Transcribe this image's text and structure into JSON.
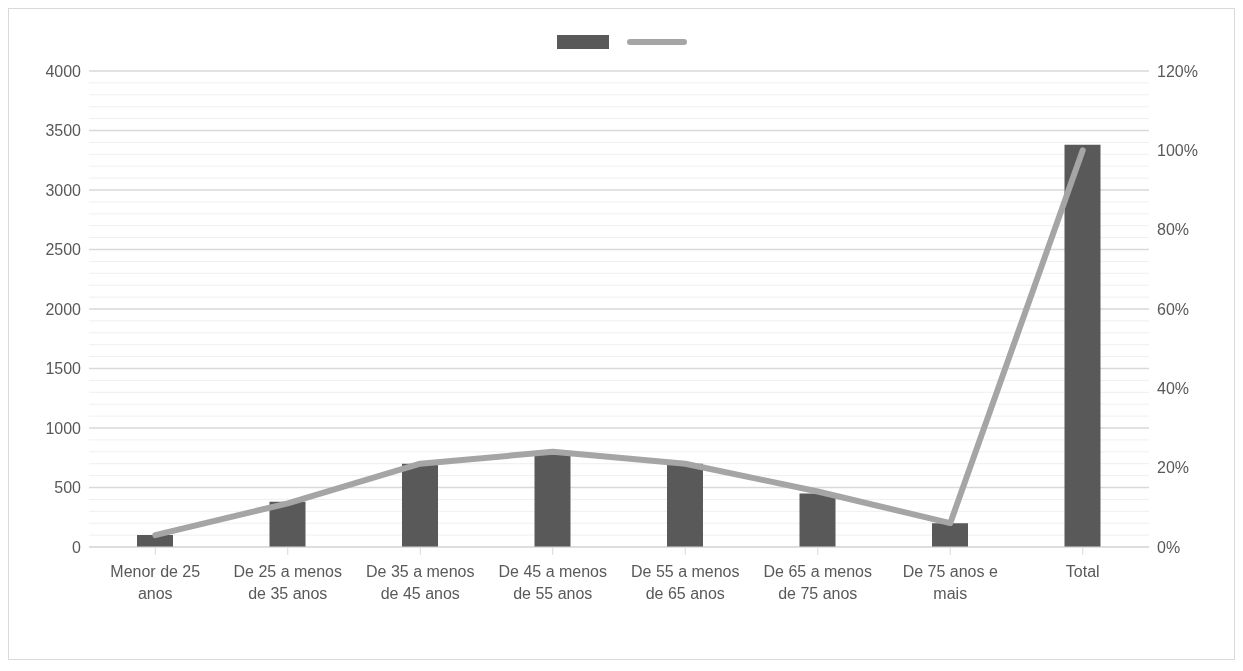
{
  "chart_data": {
    "type": "bar",
    "categories": [
      "Menor de 25 anos",
      "De 25 a menos de 35 anos",
      "De 35 a menos de 45 anos",
      "De 45 a menos de 55 anos",
      "De 55 a menos de 65 anos",
      "De 65 a menos de 75 anos",
      "De 75 anos e mais",
      "Total"
    ],
    "series": [
      {
        "color": "#595959",
        "values": [
          100,
          380,
          700,
          800,
          700,
          450,
          200,
          3380
        ]
      },
      {
        "type": "line",
        "axis": "y2",
        "color": "#a5a5a5",
        "values": [
          3,
          11,
          21,
          24,
          21,
          14,
          6,
          100
        ]
      }
    ],
    "ylim": [
      0,
      4000
    ],
    "yticks": [
      0,
      {
        "value": 100,
        "label": null
      },
      {
        "value": 200,
        "label": null
      },
      {
        "value": 300,
        "label": null
      },
      {
        "value": 400,
        "label": null
      },
      500,
      {
        "value": 600,
        "label": null
      },
      {
        "value": 700,
        "label": null
      },
      {
        "value": 800,
        "label": null
      },
      {
        "value": 900,
        "label": null
      },
      1000,
      {
        "value": 1100,
        "label": null
      },
      {
        "value": 1200,
        "label": null
      },
      {
        "value": 1300,
        "label": null
      },
      {
        "value": 1400,
        "label": null
      },
      1500,
      {
        "value": 1600,
        "label": null
      },
      {
        "value": 1700,
        "label": null
      },
      {
        "value": 1800,
        "label": null
      },
      {
        "value": 1900,
        "label": null
      },
      2000,
      {
        "value": 2100,
        "label": null
      },
      {
        "value": 2200,
        "label": null
      },
      {
        "value": 2300,
        "label": null
      },
      {
        "value": 2400,
        "label": null
      },
      2500,
      {
        "value": 2600,
        "label": null
      },
      {
        "value": 2700,
        "label": null
      },
      {
        "value": 2800,
        "label": null
      },
      {
        "value": 2900,
        "label": null
      },
      3000,
      {
        "value": 3100,
        "label": null
      },
      {
        "value": 3200,
        "label": null
      },
      {
        "value": 3300,
        "label": null
      },
      {
        "value": 3400,
        "label": null
      },
      3500,
      {
        "value": 3600,
        "label": null
      },
      {
        "value": 3700,
        "label": null
      },
      {
        "value": 3800,
        "label": null
      },
      {
        "value": 3900,
        "label": null
      },
      4000
    ],
    "y2lim": [
      0,
      120
    ],
    "y2ticks": [
      {
        "value": 0,
        "label": "0%"
      },
      {
        "value": 20,
        "label": "20%"
      },
      {
        "value": 40,
        "label": "40%"
      },
      {
        "value": 60,
        "label": "60%"
      },
      {
        "value": 80,
        "label": "80%"
      },
      {
        "value": 100,
        "label": "100%"
      },
      {
        "value": 120,
        "label": "120%"
      }
    ],
    "grid": "y",
    "marker": "none",
    "line_style": "solid"
  }
}
